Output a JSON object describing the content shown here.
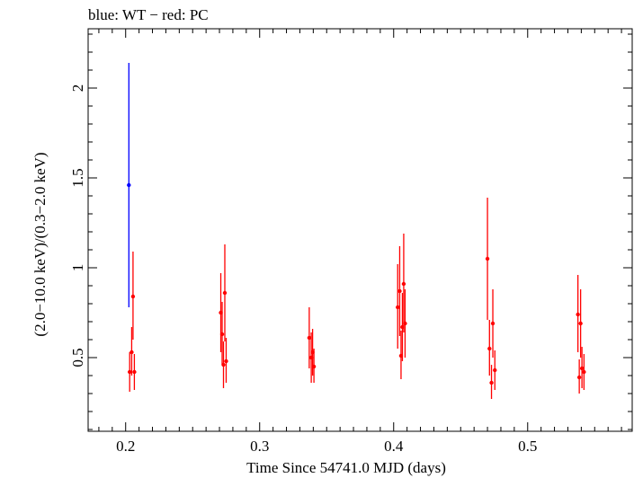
{
  "chart_data": {
    "type": "scatter",
    "title": "blue: WT − red: PC",
    "xlabel": "Time Since 54741.0 MJD (days)",
    "ylabel": "(2.0−10.0 keV)/(0.3−2.0 keV)",
    "xlim": [
      0.172,
      0.578
    ],
    "ylim": [
      0.09,
      2.33
    ],
    "x_ticks": [
      {
        "value": 0.2,
        "label": "0.2"
      },
      {
        "value": 0.3,
        "label": "0.3"
      },
      {
        "value": 0.4,
        "label": "0.4"
      },
      {
        "value": 0.5,
        "label": "0.5"
      }
    ],
    "y_ticks": [
      {
        "value": 0.5,
        "label": "0.5"
      },
      {
        "value": 1.0,
        "label": "1"
      },
      {
        "value": 1.5,
        "label": "1.5"
      },
      {
        "value": 2.0,
        "label": "2"
      }
    ],
    "x_minor_step": 0.01,
    "y_minor_step": 0.1,
    "series": [
      {
        "name": "WT",
        "color": "#0000ff",
        "points": [
          {
            "x": 0.2024,
            "y": 1.46,
            "lo": 0.78,
            "hi": 2.14
          }
        ]
      },
      {
        "name": "PC",
        "color": "#ff0000",
        "points": [
          {
            "x": 0.203,
            "y": 0.42,
            "lo": 0.31,
            "hi": 0.53
          },
          {
            "x": 0.2045,
            "y": 0.53,
            "lo": 0.4,
            "hi": 0.67
          },
          {
            "x": 0.2055,
            "y": 0.84,
            "lo": 0.6,
            "hi": 1.09
          },
          {
            "x": 0.2065,
            "y": 0.42,
            "lo": 0.32,
            "hi": 0.52
          },
          {
            "x": 0.271,
            "y": 0.75,
            "lo": 0.53,
            "hi": 0.97
          },
          {
            "x": 0.272,
            "y": 0.63,
            "lo": 0.46,
            "hi": 0.81
          },
          {
            "x": 0.273,
            "y": 0.46,
            "lo": 0.33,
            "hi": 0.59
          },
          {
            "x": 0.274,
            "y": 0.86,
            "lo": 0.59,
            "hi": 1.13
          },
          {
            "x": 0.275,
            "y": 0.48,
            "lo": 0.36,
            "hi": 0.61
          },
          {
            "x": 0.337,
            "y": 0.61,
            "lo": 0.44,
            "hi": 0.78
          },
          {
            "x": 0.3385,
            "y": 0.5,
            "lo": 0.36,
            "hi": 0.64
          },
          {
            "x": 0.3395,
            "y": 0.53,
            "lo": 0.4,
            "hi": 0.66
          },
          {
            "x": 0.3405,
            "y": 0.45,
            "lo": 0.36,
            "hi": 0.55
          },
          {
            "x": 0.403,
            "y": 0.78,
            "lo": 0.55,
            "hi": 1.02
          },
          {
            "x": 0.4045,
            "y": 0.87,
            "lo": 0.62,
            "hi": 1.12
          },
          {
            "x": 0.4055,
            "y": 0.51,
            "lo": 0.38,
            "hi": 0.65
          },
          {
            "x": 0.4065,
            "y": 0.67,
            "lo": 0.48,
            "hi": 0.86
          },
          {
            "x": 0.4075,
            "y": 0.91,
            "lo": 0.64,
            "hi": 1.19
          },
          {
            "x": 0.4085,
            "y": 0.69,
            "lo": 0.5,
            "hi": 0.88
          },
          {
            "x": 0.47,
            "y": 1.05,
            "lo": 0.71,
            "hi": 1.39
          },
          {
            "x": 0.4715,
            "y": 0.55,
            "lo": 0.4,
            "hi": 0.71
          },
          {
            "x": 0.473,
            "y": 0.36,
            "lo": 0.27,
            "hi": 0.46
          },
          {
            "x": 0.474,
            "y": 0.69,
            "lo": 0.5,
            "hi": 0.88
          },
          {
            "x": 0.4755,
            "y": 0.43,
            "lo": 0.32,
            "hi": 0.54
          },
          {
            "x": 0.5375,
            "y": 0.74,
            "lo": 0.53,
            "hi": 0.96
          },
          {
            "x": 0.5385,
            "y": 0.39,
            "lo": 0.3,
            "hi": 0.49
          },
          {
            "x": 0.5395,
            "y": 0.69,
            "lo": 0.5,
            "hi": 0.88
          },
          {
            "x": 0.5405,
            "y": 0.44,
            "lo": 0.33,
            "hi": 0.56
          },
          {
            "x": 0.542,
            "y": 0.42,
            "lo": 0.32,
            "hi": 0.52
          }
        ]
      }
    ]
  }
}
